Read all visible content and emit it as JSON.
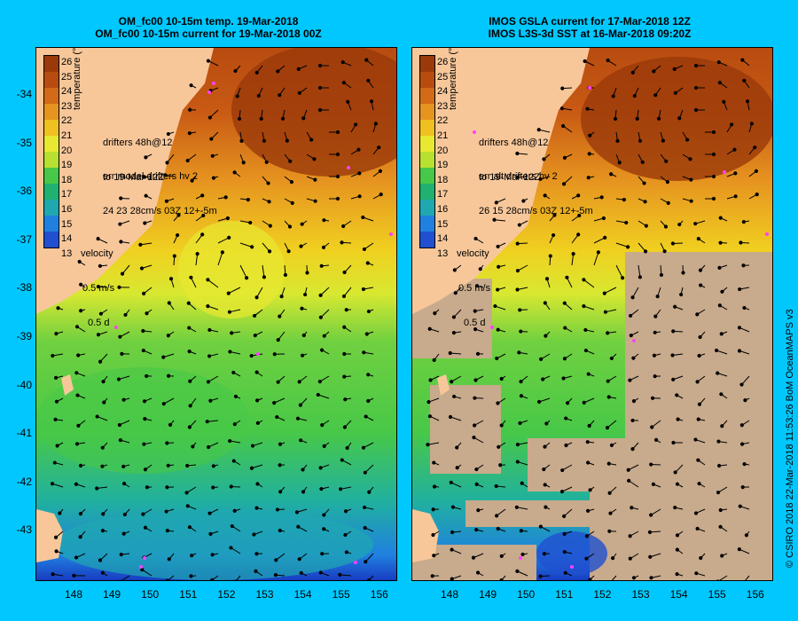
{
  "left": {
    "title_line1": "OM_fc00 10-15m temp. 19-Mar-2018",
    "title_line2": "OM_fc00 10-15m current for 19-Mar-2018 00Z",
    "drifters_line1": "drifters 48h@12",
    "drifters_line2": "to 19-Mar 12Z",
    "err_line1": "err model drifters hv 2",
    "err_line2": "24 23 28cm/s 03Z 12+-5m",
    "velocity_label": "velocity",
    "velocity_scale": "0.5 m/s",
    "velocity_time": "0.5 d",
    "colorbar_unit": "temperature (°C)"
  },
  "right": {
    "title_line1": "IMOS GSLA current for 17-Mar-2018 12Z",
    "title_line2": "IMOS L3S-3d SST at 16-Mar-2018 09:20Z",
    "drifters_line1": "drifters 48h@12",
    "drifters_line2": "to 19-Mar 12Z",
    "err_line1": "err alt drifters hv 2",
    "err_line2": "26 15 28cm/s 03Z 12+-5m",
    "velocity_label": "velocity",
    "velocity_scale": "0.5 m/s",
    "velocity_time": "0.5 d",
    "colorbar_unit": "temperature (°C)"
  },
  "colorbar_values": [
    "26",
    "25",
    "24",
    "23",
    "22",
    "21",
    "20",
    "19",
    "18",
    "17",
    "16",
    "15",
    "14",
    "13"
  ],
  "colorbar_colors": [
    "#9a3a0a",
    "#b84c10",
    "#d26a18",
    "#e69420",
    "#f0c020",
    "#e8e830",
    "#b8e030",
    "#48c848",
    "#20b070",
    "#20a8b0",
    "#2080e0",
    "#2050d0",
    "#1028b0",
    "#101870"
  ],
  "lat_labels": [
    "-34",
    "-35",
    "-36",
    "-37",
    "-38",
    "-39",
    "-40",
    "-41",
    "-42",
    "-43"
  ],
  "lon_labels": [
    "148",
    "149",
    "150",
    "151",
    "152",
    "153",
    "154",
    "155",
    "156"
  ],
  "copyright": "© CSIRO 2018   22-Mar-2018 11:53:26 BoM OceanMAPS v3",
  "colors": {
    "background": "#00c8ff",
    "land": "#f7c79a",
    "cloud": "#c8aa8c"
  }
}
